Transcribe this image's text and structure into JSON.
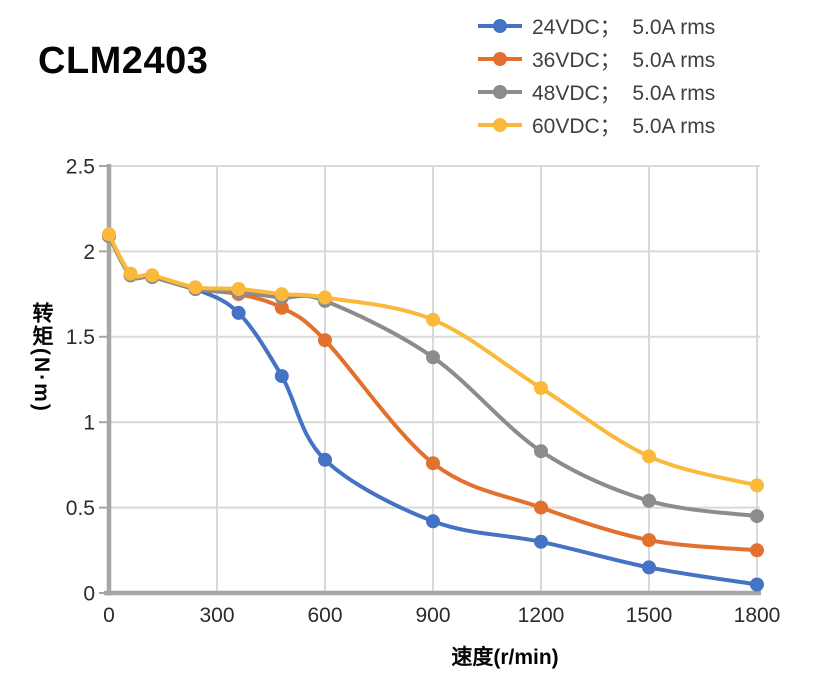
{
  "chart_data": {
    "type": "line",
    "title": "CLM2403",
    "xlabel": "速度(r/min)",
    "ylabel": "转矩(N·m)",
    "x": [
      0,
      60,
      120,
      240,
      360,
      480,
      600,
      900,
      1200,
      1500,
      1800
    ],
    "xlim": [
      0,
      1800
    ],
    "ylim": [
      0,
      2.5
    ],
    "x_tick_labels": [
      "0",
      "300",
      "600",
      "900",
      "1200",
      "1500",
      "1800"
    ],
    "y_tick_labels": [
      "0",
      "0.5",
      "1",
      "1.5",
      "2",
      "2.5"
    ],
    "grid": true,
    "legend_position": "top-right",
    "line_style": "smooth",
    "marker": "circle",
    "series": [
      {
        "name": "24VDC；  5.0A rms",
        "color": "#4472C4",
        "values": [
          2.09,
          1.86,
          1.85,
          1.78,
          1.64,
          1.27,
          0.78,
          0.42,
          0.3,
          0.15,
          0.05
        ]
      },
      {
        "name": "36VDC；  5.0A rms",
        "color": "#E2702F",
        "values": [
          2.09,
          1.86,
          1.85,
          1.78,
          1.75,
          1.67,
          1.48,
          0.76,
          0.5,
          0.31,
          0.25
        ]
      },
      {
        "name": "48VDC；  5.0A rms",
        "color": "#8C8C8C",
        "values": [
          2.09,
          1.86,
          1.85,
          1.78,
          1.76,
          1.73,
          1.71,
          1.38,
          0.83,
          0.54,
          0.45
        ]
      },
      {
        "name": "60VDC；  5.0A rms",
        "color": "#FBB93C",
        "values": [
          2.1,
          1.87,
          1.86,
          1.79,
          1.78,
          1.75,
          1.73,
          1.6,
          1.2,
          0.8,
          0.63
        ]
      }
    ]
  },
  "style_colors": {
    "gridline": "#D9D9D9",
    "axis_line": "#A6A6A6",
    "tick_text": "#2b2b2b",
    "legend_text": "#404040",
    "title_text": "#050505"
  }
}
